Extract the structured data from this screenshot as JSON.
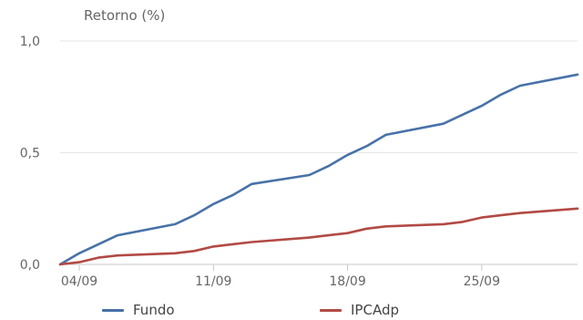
{
  "chart_data": {
    "type": "line",
    "ylabel": "Retorno (%)",
    "xlabel": "",
    "ylim": [
      0,
      1.0
    ],
    "yticks": [
      "0,0",
      "0,5",
      "1,0"
    ],
    "ytick_values": [
      0.0,
      0.5,
      1.0
    ],
    "xlim": [
      "2024-09-03",
      "2024-09-30"
    ],
    "xticks": [
      "04/09",
      "11/09",
      "18/09",
      "25/09"
    ],
    "xtick_dates": [
      "2024-09-04",
      "2024-09-11",
      "2024-09-18",
      "2024-09-25"
    ],
    "grid": "horizontal",
    "legend_position": "bottom",
    "series": [
      {
        "name": "Fundo",
        "color": "#4872a8",
        "x": [
          "2024-09-03",
          "2024-09-04",
          "2024-09-05",
          "2024-09-06",
          "2024-09-09",
          "2024-09-10",
          "2024-09-11",
          "2024-09-12",
          "2024-09-13",
          "2024-09-16",
          "2024-09-17",
          "2024-09-18",
          "2024-09-19",
          "2024-09-20",
          "2024-09-23",
          "2024-09-24",
          "2024-09-25",
          "2024-09-26",
          "2024-09-27",
          "2024-09-30"
        ],
        "values": [
          0.0,
          0.05,
          0.09,
          0.13,
          0.18,
          0.22,
          0.27,
          0.31,
          0.36,
          0.4,
          0.44,
          0.49,
          0.53,
          0.58,
          0.63,
          0.67,
          0.71,
          0.76,
          0.8,
          0.85
        ]
      },
      {
        "name": "IPCAdp",
        "color": "#b24a45",
        "x": [
          "2024-09-03",
          "2024-09-04",
          "2024-09-05",
          "2024-09-06",
          "2024-09-09",
          "2024-09-10",
          "2024-09-11",
          "2024-09-12",
          "2024-09-13",
          "2024-09-16",
          "2024-09-17",
          "2024-09-18",
          "2024-09-19",
          "2024-09-20",
          "2024-09-23",
          "2024-09-24",
          "2024-09-25",
          "2024-09-26",
          "2024-09-27",
          "2024-09-30"
        ],
        "values": [
          0.0,
          0.01,
          0.03,
          0.04,
          0.05,
          0.06,
          0.08,
          0.09,
          0.1,
          0.12,
          0.13,
          0.14,
          0.16,
          0.17,
          0.18,
          0.19,
          0.21,
          0.22,
          0.23,
          0.25
        ]
      }
    ]
  }
}
